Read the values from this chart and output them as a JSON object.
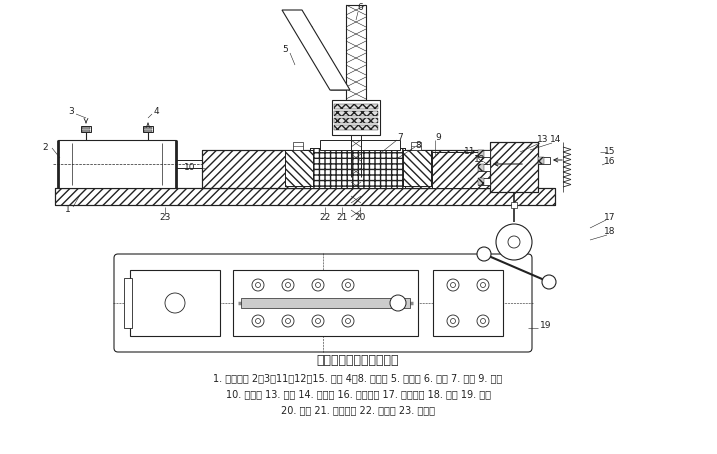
{
  "title": "气动夹紧连续钻孔装置图",
  "caption_line1": "1. 驱动气缸 2、3、11、12、15. 气嘴 4、8. 夹紧块 5. 支撑架 6. 钻头 7. 工件 9. 垫板",
  "caption_line2": "10. 支撑板 13. 顶杆 14. 换向阀 16. 回程弹簧 17. 钻床手柄 18. 凸轮 19. 螺钉",
  "caption_line3": "20. 螺杆 21. 退料簧片 22. 导向块 23. 活塞杆",
  "bg_color": "#ffffff",
  "line_color": "#222222",
  "fig_width": 7.17,
  "fig_height": 4.54,
  "dpi": 100
}
